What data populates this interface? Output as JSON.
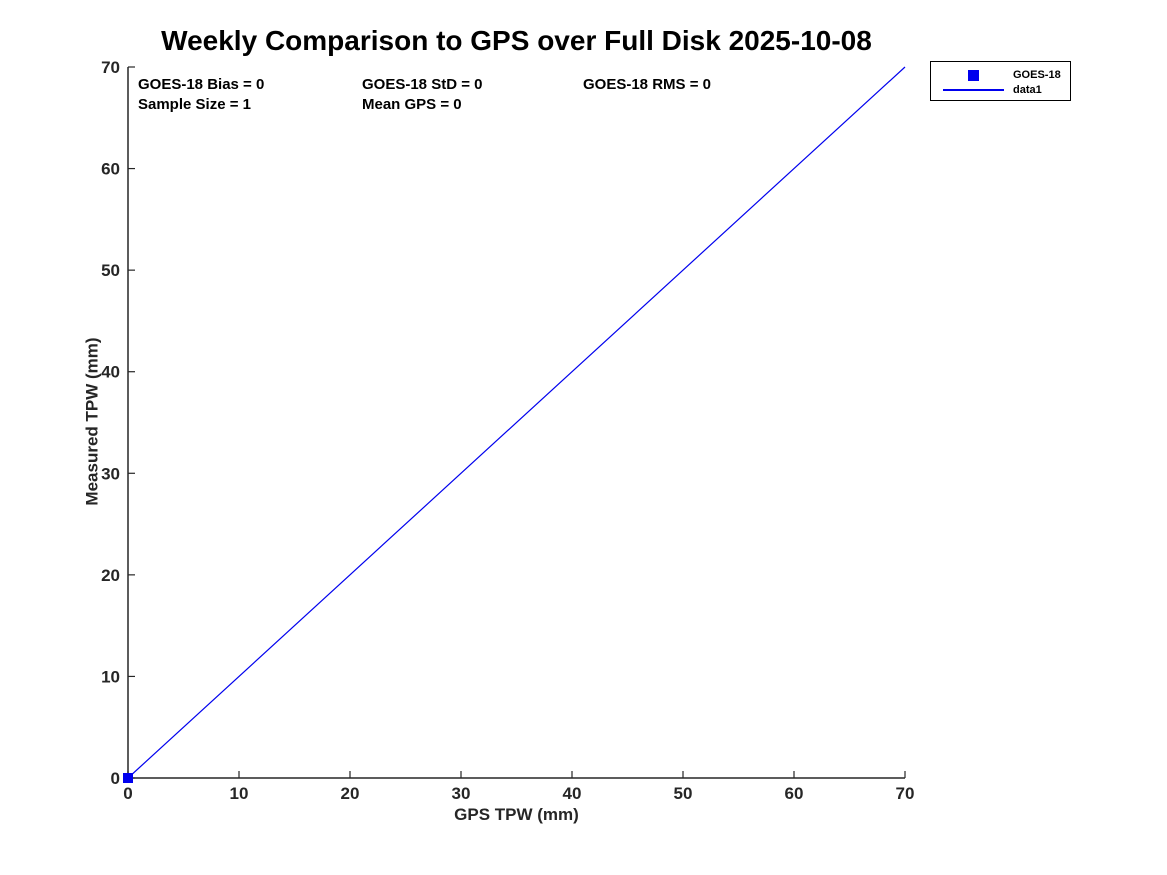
{
  "chart_data": {
    "type": "line",
    "title": "Weekly Comparison to GPS over Full Disk 2025-10-08",
    "xlabel": "GPS TPW (mm)",
    "ylabel": "Measured TPW (mm)",
    "xlim": [
      0,
      70
    ],
    "ylim": [
      0,
      70
    ],
    "x_ticks": [
      0,
      10,
      20,
      30,
      40,
      50,
      60,
      70
    ],
    "y_ticks": [
      0,
      10,
      20,
      30,
      40,
      50,
      60,
      70
    ],
    "grid": false,
    "legend_position": "outside-top-right",
    "series": [
      {
        "name": "GOES-18",
        "type": "scatter",
        "marker": "filled-square",
        "color": "#0000EE",
        "points": [
          [
            0,
            0
          ]
        ]
      },
      {
        "name": "data1",
        "type": "line",
        "color": "#0000EE",
        "points": [
          [
            0,
            0
          ],
          [
            70,
            70
          ]
        ]
      }
    ],
    "legend_entries": [
      {
        "label": "GOES-18",
        "icon": "square-marker"
      },
      {
        "label": "data1",
        "icon": "line-sample"
      }
    ],
    "annotations": [
      {
        "text": "GOES-18 Bias = 0",
        "row": 0,
        "col": 0
      },
      {
        "text": "GOES-18 StD = 0",
        "row": 0,
        "col": 1
      },
      {
        "text": "GOES-18 RMS = 0",
        "row": 0,
        "col": 2
      },
      {
        "text": "Sample Size = 1",
        "row": 1,
        "col": 0
      },
      {
        "text": "Mean GPS = 0",
        "row": 1,
        "col": 1
      }
    ]
  },
  "colors": {
    "series_blue": "#0000EE",
    "axis": "#262626",
    "text": "#000000",
    "background": "#FFFFFF"
  }
}
